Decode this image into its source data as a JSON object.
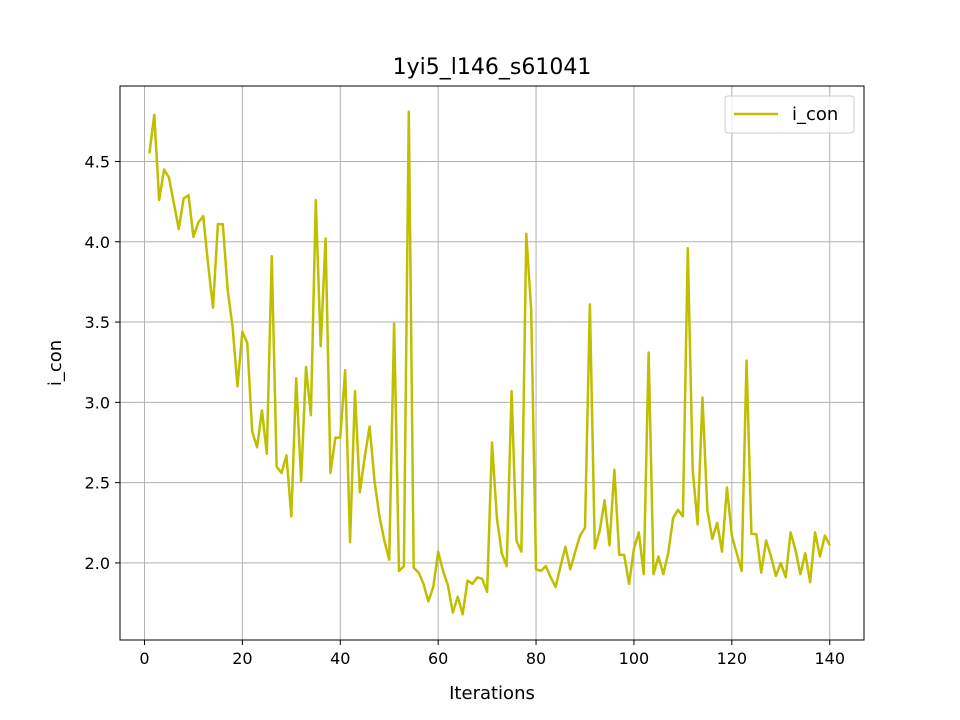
{
  "chart_data": {
    "type": "line",
    "title": "1yi5_l146_s61041",
    "xlabel": "Iterations",
    "ylabel": "i_con",
    "xlim": [
      -5,
      147
    ],
    "ylim": [
      1.52,
      4.97
    ],
    "xticks": [
      0,
      20,
      40,
      60,
      80,
      100,
      120,
      140
    ],
    "xtick_labels": [
      "0",
      "20",
      "40",
      "60",
      "80",
      "100",
      "120",
      "140"
    ],
    "yticks": [
      2.0,
      2.5,
      3.0,
      3.5,
      4.0,
      4.5
    ],
    "ytick_labels": [
      "2.0",
      "2.5",
      "3.0",
      "3.5",
      "4.0",
      "4.5"
    ],
    "grid": true,
    "legend_position": "top-right",
    "series": [
      {
        "name": "i_con",
        "color": "#bfbf00",
        "x": [
          1,
          2,
          3,
          4,
          5,
          6,
          7,
          8,
          9,
          10,
          11,
          12,
          13,
          14,
          15,
          16,
          17,
          18,
          19,
          20,
          21,
          22,
          23,
          24,
          25,
          26,
          27,
          28,
          29,
          30,
          31,
          32,
          33,
          34,
          35,
          36,
          37,
          38,
          39,
          40,
          41,
          42,
          43,
          44,
          45,
          46,
          47,
          48,
          49,
          50,
          51,
          52,
          53,
          54,
          55,
          56,
          57,
          58,
          59,
          60,
          61,
          62,
          63,
          64,
          65,
          66,
          67,
          68,
          69,
          70,
          71,
          72,
          73,
          74,
          75,
          76,
          77,
          78,
          79,
          80,
          81,
          82,
          83,
          84,
          85,
          86,
          87,
          88,
          89,
          90,
          91,
          92,
          93,
          94,
          95,
          96,
          97,
          98,
          99,
          100,
          101,
          102,
          103,
          104,
          105,
          106,
          107,
          108,
          109,
          110,
          111,
          112,
          113,
          114,
          115,
          116,
          117,
          118,
          119,
          120,
          121,
          122,
          123,
          124,
          125,
          126,
          127,
          128,
          129,
          130,
          131,
          132,
          133,
          134,
          135,
          136,
          137,
          138,
          139,
          140
        ],
        "y": [
          4.55,
          4.79,
          4.26,
          4.45,
          4.4,
          4.24,
          4.08,
          4.27,
          4.29,
          4.03,
          4.12,
          4.16,
          3.86,
          3.59,
          4.11,
          4.11,
          3.7,
          3.47,
          3.1,
          3.44,
          3.37,
          2.82,
          2.72,
          2.95,
          2.68,
          3.91,
          2.6,
          2.56,
          2.67,
          2.29,
          3.15,
          2.51,
          3.22,
          2.92,
          4.26,
          3.35,
          4.02,
          2.56,
          2.78,
          2.78,
          3.2,
          2.13,
          3.07,
          2.44,
          2.66,
          2.85,
          2.51,
          2.29,
          2.14,
          2.02,
          3.49,
          1.95,
          1.98,
          4.81,
          1.97,
          1.94,
          1.87,
          1.76,
          1.85,
          2.07,
          1.95,
          1.86,
          1.69,
          1.79,
          1.68,
          1.89,
          1.87,
          1.91,
          1.9,
          1.82,
          2.75,
          2.28,
          2.06,
          1.98,
          3.07,
          2.14,
          2.07,
          4.05,
          3.58,
          1.96,
          1.95,
          1.98,
          1.91,
          1.85,
          1.98,
          2.1,
          1.96,
          2.07,
          2.17,
          2.22,
          3.61,
          2.09,
          2.2,
          2.39,
          2.11,
          2.58,
          2.05,
          2.05,
          1.87,
          2.09,
          2.19,
          1.93,
          3.31,
          1.93,
          2.04,
          1.93,
          2.06,
          2.28,
          2.33,
          2.29,
          3.96,
          2.58,
          2.24,
          3.03,
          2.33,
          2.15,
          2.25,
          2.07,
          2.47,
          2.17,
          2.06,
          1.95,
          3.26,
          2.18,
          2.18,
          1.94,
          2.14,
          2.04,
          1.92,
          2.0,
          1.91,
          2.19,
          2.08,
          1.93,
          2.06,
          1.88,
          2.19,
          2.04,
          2.17,
          2.11
        ]
      }
    ]
  }
}
